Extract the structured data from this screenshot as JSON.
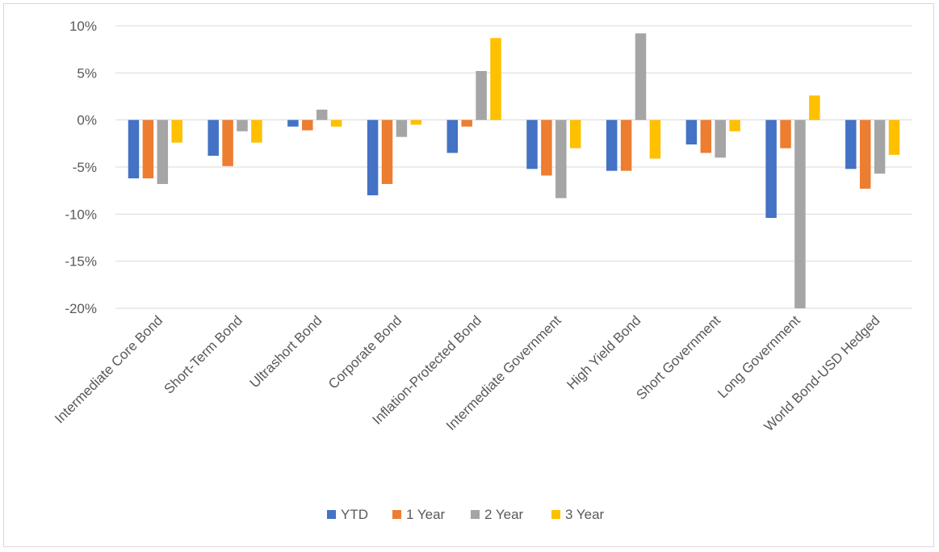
{
  "chart_data": {
    "type": "bar",
    "title": "",
    "xlabel": "",
    "ylabel": "",
    "ylim": [
      -20,
      10
    ],
    "yticks": [
      10,
      5,
      0,
      -5,
      -10,
      -15,
      -20
    ],
    "ytick_labels": [
      "10%",
      "5%",
      "0%",
      "-5%",
      "-10%",
      "-15%",
      "-20%"
    ],
    "grid": true,
    "legend_position": "bottom",
    "categories": [
      "Intermediate Core Bond",
      "Short-Term Bond",
      "Ultrashort Bond",
      "Corporate Bond",
      "Inflation-Protected Bond",
      "Intermediate Government",
      "High Yield Bond",
      "Short Government",
      "Long Government",
      "World Bond-USD Hedged"
    ],
    "series": [
      {
        "name": "YTD",
        "color": "#4472c4",
        "values": [
          -6.2,
          -3.8,
          -0.7,
          -8.0,
          -3.5,
          -5.2,
          -5.4,
          -2.6,
          -10.4,
          -5.2
        ]
      },
      {
        "name": "1 Year",
        "color": "#ed7d31",
        "values": [
          -6.2,
          -4.9,
          -1.1,
          -6.8,
          -0.7,
          -5.9,
          -5.4,
          -3.5,
          -3.0,
          -7.3
        ]
      },
      {
        "name": "2 Year",
        "color": "#a5a5a5",
        "values": [
          -6.8,
          -1.2,
          1.1,
          -1.8,
          5.2,
          -8.3,
          9.2,
          -4.0,
          -20.0,
          -5.7
        ]
      },
      {
        "name": "3 Year",
        "color": "#ffc000",
        "values": [
          -2.4,
          -2.4,
          -0.7,
          -0.5,
          8.7,
          -3.0,
          -4.1,
          -1.2,
          2.6,
          -3.7
        ]
      }
    ]
  }
}
